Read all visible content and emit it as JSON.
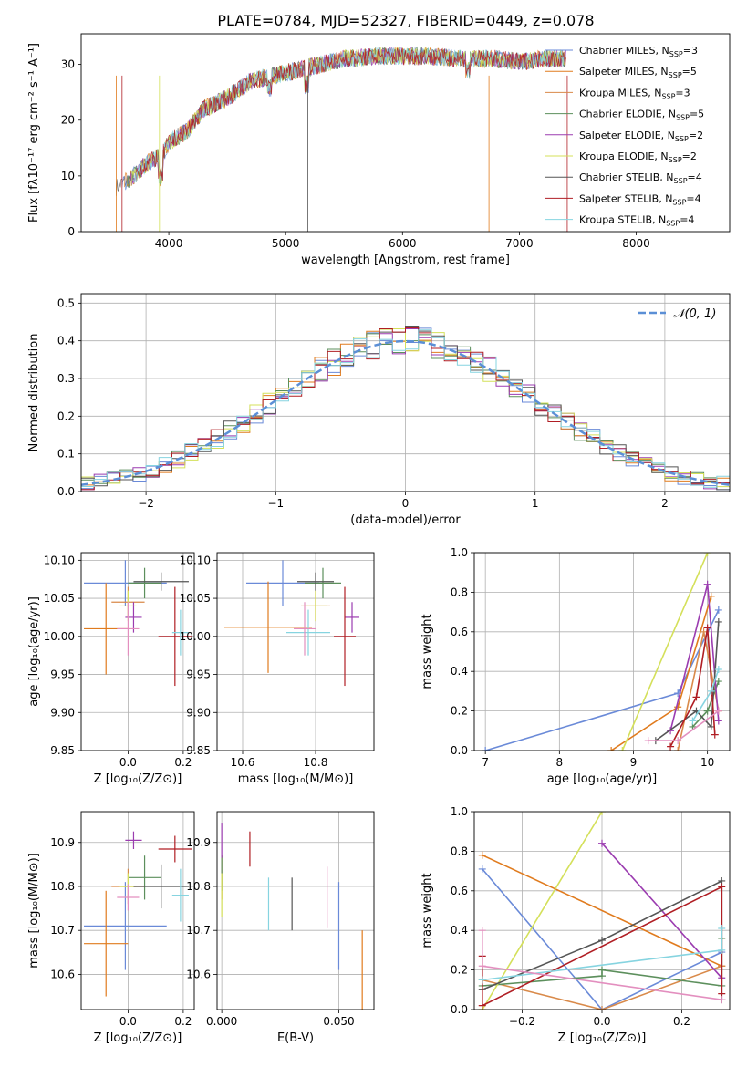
{
  "title": "PLATE=0784, MJD=52327, FIBERID=0449, z=0.078",
  "colors": [
    "#6a8ad8",
    "#e07b1e",
    "#d98a4a",
    "#5c8f5c",
    "#9b3cb0",
    "#d4e05a",
    "#555555",
    "#b01e24",
    "#86d4e0",
    "#e38fbf"
  ],
  "chart_data": [
    {
      "id": "spectrum",
      "type": "line",
      "xlabel": "wavelength [Angstrom, rest frame]",
      "ylabel": "Flux [fλ10⁻¹⁷ erg cm⁻² s⁻¹ A⁻¹]",
      "xlim": [
        3250,
        8800
      ],
      "ylim": [
        0,
        35.5
      ],
      "xticks": [
        4000,
        5000,
        6000,
        7000,
        8000
      ],
      "yticks": [
        0,
        10,
        20,
        30
      ],
      "legend_position": "right",
      "legend": [
        "Chabrier MILES, N_SSP=3",
        "Salpeter MILES, N_SSP=5",
        "Kroupa MILES, N_SSP=3",
        "Chabrier ELODIE, N_SSP=5",
        "Salpeter ELODIE, N_SSP=2",
        "Kroupa ELODIE, N_SSP=2",
        "Chabrier STELIB, N_SSP=4",
        "Salpeter STELIB, N_SSP=4",
        "Kroupa STELIB, N_SSP=4"
      ],
      "data_envelope": {
        "x": [
          3550,
          3700,
          3800,
          3950,
          4000,
          4150,
          4300,
          4500,
          4700,
          4900,
          5100,
          5300,
          5500,
          5800,
          6000,
          6200,
          6500,
          6800,
          7000,
          7200,
          7400
        ],
        "y": [
          8,
          10,
          12,
          14,
          16,
          18,
          22,
          24,
          27,
          28,
          29,
          30,
          31,
          31.5,
          31.5,
          31.5,
          31,
          31,
          30.5,
          31,
          31
        ]
      }
    },
    {
      "id": "residuals",
      "type": "histogram",
      "xlabel": "(data-model)/error",
      "ylabel": "Normed distribution",
      "xlim": [
        -2.5,
        2.5
      ],
      "ylim": [
        0,
        0.525
      ],
      "xticks": [
        -2,
        -1,
        0,
        1,
        2
      ],
      "yticks": [
        0.0,
        0.1,
        0.2,
        0.3,
        0.4,
        0.5
      ],
      "grid": true,
      "legend": [
        "𝒩(0, 1)"
      ],
      "legend_position": "top-right",
      "bin_width": 0.1
    },
    {
      "id": "age-vs-z",
      "type": "errorbar",
      "xlabel": "Z [log₁₀(Z/Z⊙)]",
      "ylabel": "age  [log₁₀(age/yr)]",
      "xlim": [
        -0.17,
        0.24
      ],
      "ylim": [
        9.85,
        10.11
      ],
      "xticks": [
        0.0,
        0.2
      ],
      "yticks": [
        9.85,
        9.9,
        9.95,
        10.0,
        10.05,
        10.1
      ],
      "grid": true,
      "points": [
        {
          "x": -0.01,
          "xerr": 0.15,
          "y": 10.07,
          "yerr": 0.03
        },
        {
          "x": -0.08,
          "xerr": 0.08,
          "y": 10.01,
          "yerr": 0.06
        },
        {
          "x": 0.0,
          "xerr": 0.06,
          "y": 10.045,
          "yerr": 0.02
        },
        {
          "x": 0.06,
          "xerr": 0.06,
          "y": 10.07,
          "yerr": 0.02
        },
        {
          "x": 0.02,
          "xerr": 0.03,
          "y": 10.025,
          "yerr": 0.02
        },
        {
          "x": 0.0,
          "xerr": 0.03,
          "y": 10.04,
          "yerr": 0.02
        },
        {
          "x": 0.12,
          "xerr": 0.1,
          "y": 10.072,
          "yerr": 0.012
        },
        {
          "x": 0.17,
          "xerr": 0.06,
          "y": 10.0,
          "yerr": 0.065
        },
        {
          "x": 0.19,
          "xerr": 0.03,
          "y": 10.005,
          "yerr": 0.03
        },
        {
          "x": 0.0,
          "xerr": 0.04,
          "y": 10.01,
          "yerr": 0.035
        }
      ]
    },
    {
      "id": "age-vs-mass",
      "type": "errorbar",
      "xlabel": "mass [log₁₀(M/M⊙)]",
      "ylabel": "",
      "xlim": [
        10.53,
        10.96
      ],
      "ylim": [
        9.85,
        10.11
      ],
      "xticks": [
        10.6,
        10.8
      ],
      "yticks": [
        9.85,
        9.9,
        9.95,
        10.0,
        10.05,
        10.1
      ],
      "grid": true,
      "points": [
        {
          "x": 10.71,
          "xerr": 0.1,
          "y": 10.07,
          "yerr": 0.03
        },
        {
          "x": 10.67,
          "xerr": 0.12,
          "y": 10.012,
          "yerr": 0.06
        },
        {
          "x": 10.8,
          "xerr": 0.04,
          "y": 10.04,
          "yerr": 0.02
        },
        {
          "x": 10.82,
          "xerr": 0.05,
          "y": 10.07,
          "yerr": 0.02
        },
        {
          "x": 10.9,
          "xerr": 0.02,
          "y": 10.025,
          "yerr": 0.02
        },
        {
          "x": 10.8,
          "xerr": 0.03,
          "y": 10.04,
          "yerr": 0.02
        },
        {
          "x": 10.8,
          "xerr": 0.05,
          "y": 10.072,
          "yerr": 0.012
        },
        {
          "x": 10.88,
          "xerr": 0.03,
          "y": 10.0,
          "yerr": 0.065
        },
        {
          "x": 10.78,
          "xerr": 0.06,
          "y": 10.005,
          "yerr": 0.03
        },
        {
          "x": 10.77,
          "xerr": 0.03,
          "y": 10.01,
          "yerr": 0.035
        }
      ]
    },
    {
      "id": "weight-vs-age",
      "type": "line",
      "xlabel": "age  [log₁₀(age/yr)]",
      "ylabel": "mass weight",
      "xlim": [
        6.85,
        10.3
      ],
      "ylim": [
        0,
        1.0
      ],
      "xticks": [
        7,
        8,
        9,
        10
      ],
      "yticks": [
        0.0,
        0.2,
        0.4,
        0.6,
        0.8,
        1.0
      ],
      "grid": true,
      "series": [
        {
          "x": [
            7.0,
            9.6,
            10.15
          ],
          "y": [
            0.0,
            0.29,
            0.71
          ]
        },
        {
          "x": [
            8.7,
            9.6,
            10.05
          ],
          "y": [
            0.0,
            0.22,
            0.78
          ]
        },
        {
          "x": [
            9.6,
            9.95,
            10.15
          ],
          "y": [
            0.0,
            0.6,
            0.2
          ]
        },
        {
          "x": [
            9.8,
            10.0,
            10.15
          ],
          "y": [
            0.12,
            0.2,
            0.35
          ]
        },
        {
          "x": [
            9.5,
            10.0,
            10.15
          ],
          "y": [
            0.1,
            0.84,
            0.15
          ]
        },
        {
          "x": [
            8.85,
            10.0
          ],
          "y": [
            0.0,
            1.0
          ]
        },
        {
          "x": [
            9.3,
            9.85,
            10.05,
            10.15
          ],
          "y": [
            0.05,
            0.2,
            0.12,
            0.65
          ]
        },
        {
          "x": [
            9.5,
            9.85,
            10.0,
            10.1
          ],
          "y": [
            0.02,
            0.27,
            0.62,
            0.08
          ]
        },
        {
          "x": [
            9.8,
            10.05,
            10.15
          ],
          "y": [
            0.15,
            0.3,
            0.41
          ]
        },
        {
          "x": [
            9.2,
            9.6,
            10.15
          ],
          "y": [
            0.05,
            0.05,
            0.2
          ]
        }
      ]
    },
    {
      "id": "mass-vs-z",
      "type": "errorbar",
      "xlabel": "Z [log₁₀(Z/Z⊙)]",
      "ylabel": "mass [log₁₀(M/M⊙)]",
      "xlim": [
        -0.17,
        0.24
      ],
      "ylim": [
        10.52,
        10.97
      ],
      "xticks": [
        0.0,
        0.2
      ],
      "yticks": [
        10.6,
        10.7,
        10.8,
        10.9
      ],
      "grid": true,
      "points": [
        {
          "x": -0.01,
          "xerr": 0.15,
          "y": 10.71,
          "yerr": 0.1
        },
        {
          "x": -0.08,
          "xerr": 0.08,
          "y": 10.67,
          "yerr": 0.12
        },
        {
          "x": 0.0,
          "xerr": 0.06,
          "y": 10.8,
          "yerr": 0.04
        },
        {
          "x": 0.06,
          "xerr": 0.06,
          "y": 10.82,
          "yerr": 0.05
        },
        {
          "x": 0.02,
          "xerr": 0.03,
          "y": 10.905,
          "yerr": 0.02
        },
        {
          "x": 0.0,
          "xerr": 0.03,
          "y": 10.8,
          "yerr": 0.03
        },
        {
          "x": 0.12,
          "xerr": 0.1,
          "y": 10.8,
          "yerr": 0.05
        },
        {
          "x": 0.17,
          "xerr": 0.06,
          "y": 10.885,
          "yerr": 0.03
        },
        {
          "x": 0.19,
          "xerr": 0.03,
          "y": 10.78,
          "yerr": 0.06
        },
        {
          "x": 0.0,
          "xerr": 0.04,
          "y": 10.775,
          "yerr": 0.03
        }
      ]
    },
    {
      "id": "mass-vs-ebv",
      "type": "errorbar",
      "xlabel": "E(B-V)",
      "ylabel": "",
      "xlim": [
        -0.002,
        0.065
      ],
      "ylim": [
        10.52,
        10.97
      ],
      "xticks": [
        0.0,
        0.05
      ],
      "yticks": [
        10.6,
        10.7,
        10.8,
        10.9
      ],
      "grid": true,
      "points": [
        {
          "x": 0.05,
          "xerr": 0,
          "y": 10.71,
          "yerr": 0.1
        },
        {
          "x": 0.06,
          "xerr": 0,
          "y": 10.6,
          "yerr": 0.1
        },
        {
          "x": 0.0,
          "xerr": 0,
          "y": 10.82,
          "yerr": 0.05
        },
        {
          "x": 0.0,
          "xerr": 0,
          "y": 10.83,
          "yerr": 0.04
        },
        {
          "x": 0.0,
          "xerr": 0,
          "y": 10.905,
          "yerr": 0.04
        },
        {
          "x": 0.0,
          "xerr": 0,
          "y": 10.78,
          "yerr": 0.05
        },
        {
          "x": 0.03,
          "xerr": 0,
          "y": 10.76,
          "yerr": 0.06
        },
        {
          "x": 0.012,
          "xerr": 0,
          "y": 10.885,
          "yerr": 0.04
        },
        {
          "x": 0.02,
          "xerr": 0,
          "y": 10.76,
          "yerr": 0.06
        },
        {
          "x": 0.045,
          "xerr": 0,
          "y": 10.775,
          "yerr": 0.07
        }
      ]
    },
    {
      "id": "weight-vs-z",
      "type": "line",
      "xlabel": "Z [log₁₀(Z/Z⊙)]",
      "ylabel": "mass weight",
      "xlim": [
        -0.32,
        0.32
      ],
      "ylim": [
        0,
        1.0
      ],
      "xticks": [
        -0.2,
        0.0,
        0.2
      ],
      "yticks": [
        0.0,
        0.2,
        0.4,
        0.6,
        0.8,
        1.0
      ],
      "grid": true,
      "series": [
        {
          "x": [
            -0.3,
            0.0,
            0.3
          ],
          "y": [
            0.71,
            0.0,
            0.29
          ]
        },
        {
          "x": [
            -0.3,
            0.3
          ],
          "y": [
            0.78,
            0.22
          ]
        },
        {
          "x": [
            -0.3,
            0.0,
            0.3
          ],
          "y": [
            0.15,
            0.0,
            0.22
          ]
        },
        {
          "x": [
            -0.3,
            0.0,
            0.0,
            0.3,
            0.3
          ],
          "y": [
            0.12,
            0.17,
            0.2,
            0.12,
            0.36
          ]
        },
        {
          "x": [
            0.0,
            0.3
          ],
          "y": [
            0.84,
            0.16
          ]
        },
        {
          "x": [
            -0.3,
            0.0
          ],
          "y": [
            0.0,
            1.0
          ]
        },
        {
          "x": [
            -0.3,
            0.0,
            0.3,
            0.3
          ],
          "y": [
            0.1,
            0.35,
            0.65,
            0.05
          ]
        },
        {
          "x": [
            -0.3,
            -0.3,
            0.3,
            0.3
          ],
          "y": [
            0.27,
            0.02,
            0.62,
            0.08
          ]
        },
        {
          "x": [
            -0.3,
            0.3,
            0.3
          ],
          "y": [
            0.15,
            0.3,
            0.41
          ]
        },
        {
          "x": [
            -0.3,
            -0.3,
            0.3
          ],
          "y": [
            0.4,
            0.22,
            0.05
          ]
        }
      ]
    }
  ]
}
